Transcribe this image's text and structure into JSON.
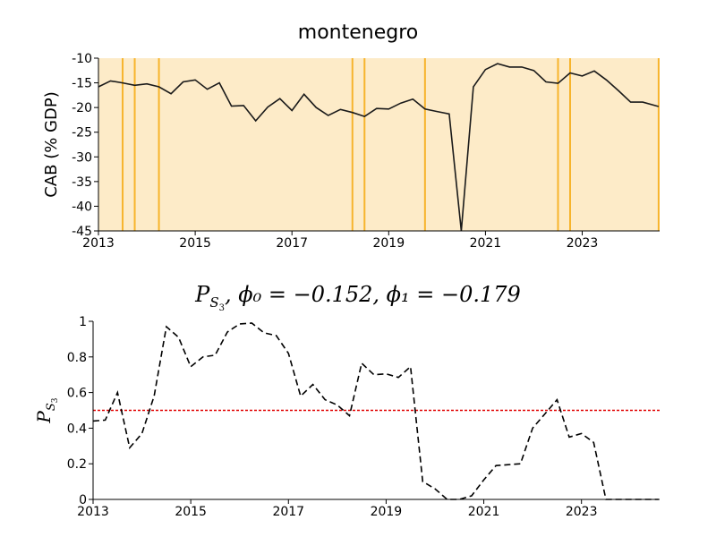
{
  "chart_data": [
    {
      "type": "line",
      "title": "montenegro",
      "ylabel": "CAB (% GDP)",
      "xlim": [
        2013.0,
        2024.6
      ],
      "ylim": [
        -45,
        -10
      ],
      "xticks": [
        2013,
        2015,
        2017,
        2019,
        2021,
        2023
      ],
      "xtick_labels": [
        "2013",
        "2015",
        "2017",
        "2019",
        "2021",
        "2023"
      ],
      "yticks": [
        -45,
        -40,
        -35,
        -30,
        -25,
        -20,
        -15,
        -10
      ],
      "ytick_labels": [
        "-45",
        "-40",
        "-35",
        "-30",
        "-25",
        "-20",
        "-15",
        "-10"
      ],
      "background_color": "#fdebc8",
      "vline_color": "#f7b42c",
      "line_color": "#1a1a1a",
      "vlines": [
        2013.5,
        2013.75,
        2014.25,
        2018.25,
        2018.5,
        2019.75,
        2022.5,
        2022.75,
        2024.58
      ],
      "x": [
        2013.0,
        2013.25,
        2013.5,
        2013.75,
        2014.0,
        2014.25,
        2014.5,
        2014.75,
        2015.0,
        2015.25,
        2015.5,
        2015.75,
        2016.0,
        2016.25,
        2016.5,
        2016.75,
        2017.0,
        2017.25,
        2017.5,
        2017.75,
        2018.0,
        2018.25,
        2018.5,
        2018.75,
        2019.0,
        2019.25,
        2019.5,
        2019.75,
        2020.0,
        2020.25,
        2020.5,
        2020.75,
        2021.0,
        2021.25,
        2021.5,
        2021.75,
        2022.0,
        2022.25,
        2022.5,
        2022.75,
        2023.0,
        2023.25,
        2023.5,
        2023.75,
        2024.0,
        2024.25,
        2024.58
      ],
      "y": [
        -15.8,
        -14.6,
        -15.0,
        -15.5,
        -15.2,
        -15.8,
        -17.2,
        -14.8,
        -14.4,
        -16.3,
        -15.0,
        -19.7,
        -19.6,
        -22.7,
        -19.9,
        -18.2,
        -20.6,
        -17.3,
        -20.0,
        -21.6,
        -20.4,
        -21.0,
        -21.8,
        -20.2,
        -20.3,
        -19.1,
        -18.3,
        -20.3,
        -20.8,
        -21.3,
        -45.0,
        -15.8,
        -12.3,
        -11.1,
        -11.8,
        -11.8,
        -12.5,
        -14.8,
        -15.1,
        -13.0,
        -13.6,
        -12.6,
        -14.4,
        -16.6,
        -18.9,
        -18.9,
        -19.8
      ]
    },
    {
      "type": "line",
      "title_parts": {
        "main": "P",
        "sub": "S",
        "subsub": "3",
        "rest": ", ϕ₀ = −0.152, ϕ₁ = −0.179"
      },
      "ylabel_parts": {
        "main": "P",
        "sub": "S",
        "subsub": "3"
      },
      "xlim": [
        2013.0,
        2024.6
      ],
      "ylim": [
        0,
        1
      ],
      "xticks": [
        2013,
        2015,
        2017,
        2019,
        2021,
        2023
      ],
      "xtick_labels": [
        "2013",
        "2015",
        "2017",
        "2019",
        "2021",
        "2023"
      ],
      "yticks": [
        0,
        0.2,
        0.4,
        0.6,
        0.8,
        1
      ],
      "ytick_labels": [
        "0",
        "0.2",
        "0.4",
        "0.6",
        "0.8",
        "1"
      ],
      "threshold": 0.5,
      "threshold_color": "#e00000",
      "line_color": "#000000",
      "x": [
        2013.0,
        2013.25,
        2013.5,
        2013.75,
        2014.0,
        2014.25,
        2014.5,
        2014.75,
        2015.0,
        2015.25,
        2015.5,
        2015.75,
        2016.0,
        2016.25,
        2016.5,
        2016.75,
        2017.0,
        2017.25,
        2017.5,
        2017.75,
        2018.0,
        2018.25,
        2018.5,
        2018.75,
        2019.0,
        2019.25,
        2019.5,
        2019.75,
        2020.0,
        2020.25,
        2020.5,
        2020.75,
        2021.0,
        2021.25,
        2021.5,
        2021.75,
        2022.0,
        2022.25,
        2022.5,
        2022.75,
        2023.0,
        2023.25,
        2023.5,
        2023.75,
        2024.0,
        2024.25,
        2024.58
      ],
      "y": [
        0.44,
        0.445,
        0.6,
        0.29,
        0.37,
        0.58,
        0.97,
        0.91,
        0.745,
        0.8,
        0.81,
        0.94,
        0.985,
        0.99,
        0.935,
        0.92,
        0.82,
        0.58,
        0.645,
        0.56,
        0.53,
        0.47,
        0.765,
        0.7,
        0.705,
        0.685,
        0.745,
        0.1,
        0.06,
        0.0,
        0.0,
        0.02,
        0.11,
        0.19,
        0.195,
        0.2,
        0.4,
        0.48,
        0.56,
        0.35,
        0.37,
        0.32,
        0.0,
        0.0,
        0.0,
        0.0,
        0.0
      ]
    }
  ]
}
